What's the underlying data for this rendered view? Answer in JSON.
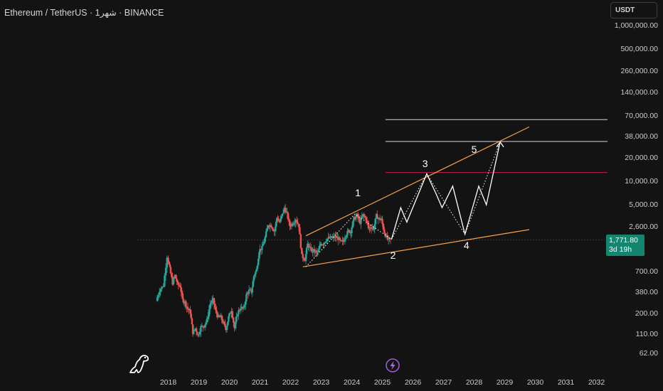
{
  "symbol": {
    "title": "Ethereum / TetherUS · 1شهر · BINANCE"
  },
  "currency": {
    "label": "USDT"
  },
  "colors": {
    "background": "#131313",
    "up": "#26a69a",
    "down": "#ef5350",
    "channel": "#f7a24b",
    "level": "#d1d4dc",
    "red_level": "#c2185b",
    "projection": "#ffffff",
    "badge": "#13866f"
  },
  "price_badge": {
    "price": "1,771.80",
    "countdown": "3d 19h"
  },
  "chart_data": {
    "type": "candlestick",
    "y_scale": "log",
    "ylim": [
      50,
      1500000
    ],
    "xlim": [
      "2017-06",
      "2032-12"
    ],
    "grid": false,
    "y_ticks": [
      {
        "value": 1000000,
        "label": "1,000,000.00"
      },
      {
        "value": 500000,
        "label": "500,000.00"
      },
      {
        "value": 260000,
        "label": "260,000.00"
      },
      {
        "value": 140000,
        "label": "140,000.00"
      },
      {
        "value": 70000,
        "label": "70,000.00"
      },
      {
        "value": 38000,
        "label": "38,000.00"
      },
      {
        "value": 20000,
        "label": "20,000.00"
      },
      {
        "value": 10000,
        "label": "10,000.00"
      },
      {
        "value": 5000,
        "label": "5,000.00"
      },
      {
        "value": 2600,
        "label": "2,600.00"
      },
      {
        "value": 700,
        "label": "700.00"
      },
      {
        "value": 380,
        "label": "380.00"
      },
      {
        "value": 200,
        "label": "200.00"
      },
      {
        "value": 110,
        "label": "110.00"
      },
      {
        "value": 62,
        "label": "62.00"
      }
    ],
    "x_ticks": [
      {
        "value": 2018,
        "label": "2018"
      },
      {
        "value": 2019,
        "label": "2019"
      },
      {
        "value": 2020,
        "label": "2020"
      },
      {
        "value": 2021,
        "label": "2021"
      },
      {
        "value": 2022,
        "label": "2022"
      },
      {
        "value": 2023,
        "label": "2023"
      },
      {
        "value": 2024,
        "label": "2024"
      },
      {
        "value": 2025,
        "label": "2025"
      },
      {
        "value": 2026,
        "label": "2026"
      },
      {
        "value": 2027,
        "label": "2027"
      },
      {
        "value": 2028,
        "label": "2028"
      },
      {
        "value": 2029,
        "label": "2029"
      },
      {
        "value": 2030,
        "label": "2030"
      },
      {
        "value": 2031,
        "label": "2031"
      },
      {
        "value": 2032,
        "label": "2032"
      }
    ],
    "price_path": [
      [
        2017.64,
        290
      ],
      [
        2017.75,
        400
      ],
      [
        2017.88,
        460
      ],
      [
        2018.0,
        1100
      ],
      [
        2018.08,
        750
      ],
      [
        2018.17,
        500
      ],
      [
        2018.25,
        620
      ],
      [
        2018.33,
        480
      ],
      [
        2018.42,
        450
      ],
      [
        2018.5,
        300
      ],
      [
        2018.58,
        280
      ],
      [
        2018.67,
        230
      ],
      [
        2018.75,
        210
      ],
      [
        2018.83,
        115
      ],
      [
        2018.92,
        130
      ],
      [
        2019.0,
        105
      ],
      [
        2019.1,
        135
      ],
      [
        2019.2,
        140
      ],
      [
        2019.3,
        165
      ],
      [
        2019.4,
        265
      ],
      [
        2019.5,
        300
      ],
      [
        2019.58,
        215
      ],
      [
        2019.67,
        180
      ],
      [
        2019.75,
        180
      ],
      [
        2019.83,
        150
      ],
      [
        2019.92,
        130
      ],
      [
        2020.0,
        180
      ],
      [
        2020.1,
        225
      ],
      [
        2020.2,
        130
      ],
      [
        2020.3,
        205
      ],
      [
        2020.4,
        240
      ],
      [
        2020.5,
        230
      ],
      [
        2020.58,
        345
      ],
      [
        2020.67,
        395
      ],
      [
        2020.75,
        385
      ],
      [
        2020.83,
        615
      ],
      [
        2020.92,
        740
      ],
      [
        2021.0,
        1300
      ],
      [
        2021.1,
        1400
      ],
      [
        2021.2,
        1900
      ],
      [
        2021.3,
        2800
      ],
      [
        2021.4,
        2700
      ],
      [
        2021.5,
        2300
      ],
      [
        2021.58,
        3400
      ],
      [
        2021.67,
        3000
      ],
      [
        2021.75,
        3700
      ],
      [
        2021.83,
        4600
      ],
      [
        2021.92,
        3700
      ],
      [
        2022.0,
        2700
      ],
      [
        2022.1,
        2900
      ],
      [
        2022.2,
        3300
      ],
      [
        2022.3,
        2700
      ],
      [
        2022.4,
        1100
      ],
      [
        2022.5,
        1000
      ],
      [
        2022.58,
        1550
      ],
      [
        2022.67,
        1350
      ],
      [
        2022.75,
        1300
      ],
      [
        2022.83,
        1250
      ],
      [
        2022.92,
        1200
      ],
      [
        2023.0,
        1580
      ],
      [
        2023.1,
        1600
      ],
      [
        2023.2,
        1800
      ],
      [
        2023.3,
        1870
      ],
      [
        2023.4,
        1900
      ],
      [
        2023.5,
        1930
      ],
      [
        2023.58,
        1860
      ],
      [
        2023.67,
        1650
      ],
      [
        2023.75,
        1700
      ],
      [
        2023.83,
        2050
      ],
      [
        2023.92,
        2300
      ],
      [
        2024.0,
        2300
      ],
      [
        2024.1,
        3300
      ],
      [
        2024.2,
        3650
      ],
      [
        2024.3,
        3000
      ],
      [
        2024.4,
        3700
      ],
      [
        2024.5,
        3300
      ],
      [
        2024.58,
        2500
      ],
      [
        2024.67,
        2600
      ],
      [
        2024.75,
        2500
      ],
      [
        2024.83,
        3600
      ],
      [
        2024.92,
        3300
      ],
      [
        2025.0,
        3200
      ],
      [
        2025.1,
        2200
      ],
      [
        2025.2,
        1800
      ],
      [
        2025.3,
        1770
      ]
    ],
    "series": [
      {
        "name": "",
        "kind": "channel_upper",
        "points": [
          [
            2022.5,
            2000
          ],
          [
            2029.8,
            50000
          ]
        ]
      },
      {
        "name": "",
        "kind": "channel_lower",
        "points": [
          [
            2022.4,
            800
          ],
          [
            2029.8,
            2400
          ]
        ]
      },
      {
        "name": "",
        "kind": "projection_zigzag",
        "points": [
          [
            2025.3,
            1800
          ],
          [
            2025.6,
            4600
          ],
          [
            2025.8,
            3000
          ],
          [
            2026.45,
            12500
          ],
          [
            2026.75,
            7000
          ],
          [
            2026.95,
            4600
          ],
          [
            2027.3,
            8700
          ],
          [
            2027.7,
            2100
          ],
          [
            2028.15,
            8700
          ],
          [
            2028.4,
            5000
          ],
          [
            2028.85,
            32000
          ]
        ]
      },
      {
        "name": "",
        "kind": "dotted_path",
        "points": [
          [
            2022.5,
            800
          ],
          [
            2024.1,
            3800
          ],
          [
            2025.3,
            1800
          ],
          [
            2026.45,
            12500
          ],
          [
            2027.7,
            2100
          ],
          [
            2028.85,
            32000
          ]
        ]
      }
    ],
    "horizontal_levels": [
      {
        "value": 62000,
        "color": "level",
        "x_start": 2025.1
      },
      {
        "value": 32500,
        "color": "level",
        "x_start": 2025.1
      },
      {
        "value": 13000,
        "color": "red_level",
        "x_start": 2025.1
      },
      {
        "value": 1771.8,
        "color": "current_price",
        "x_start": 2017.0
      }
    ],
    "wave_labels": [
      {
        "text": "1",
        "x": 2024.2,
        "y": 7200
      },
      {
        "text": "2",
        "x": 2025.35,
        "y": 1120
      },
      {
        "text": "3",
        "x": 2026.4,
        "y": 17000
      },
      {
        "text": "4",
        "x": 2027.75,
        "y": 1500
      },
      {
        "text": "5",
        "x": 2028.0,
        "y": 26000
      }
    ]
  }
}
